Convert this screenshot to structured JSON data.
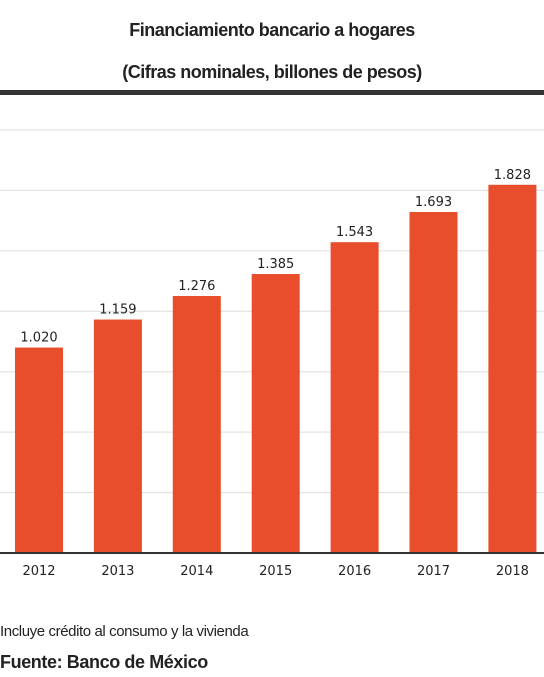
{
  "title": "Financiamiento bancario a hogares",
  "subtitle": "(Cifras nominales, billones de pesos)",
  "footnote": "Incluye crédito al consumo y la vivienda",
  "source": "Fuente: Banco de México",
  "colors": {
    "bar": "#e84d2c",
    "grid": "#dddddd",
    "axis": "#333333",
    "text": "#222222"
  },
  "chart_data": {
    "type": "bar",
    "title": "Financiamiento bancario a hogares",
    "subtitle": "(Cifras nominales, billones de pesos)",
    "categories": [
      "2012",
      "2013",
      "2014",
      "2015",
      "2016",
      "2017",
      "2018"
    ],
    "values": [
      1.02,
      1.159,
      1.276,
      1.385,
      1.543,
      1.693,
      1.828
    ],
    "value_labels": [
      "1.020",
      "1.159",
      "1.276",
      "1.385",
      "1.543",
      "1.693",
      "1.828"
    ],
    "xlabel": "",
    "ylabel": "",
    "ylim": [
      0,
      2.1
    ],
    "gridlines": [
      0.3,
      0.6,
      0.9,
      1.2,
      1.5,
      1.8,
      2.1
    ],
    "grid": true,
    "legend": "none"
  }
}
